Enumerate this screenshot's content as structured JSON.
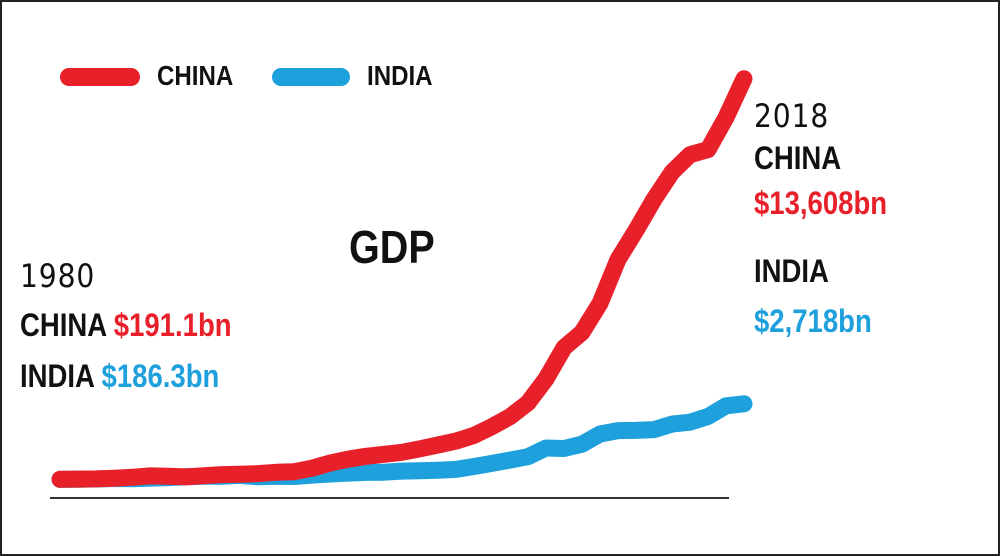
{
  "colors": {
    "china": "#e8202a",
    "india": "#1ea0dd",
    "text": "#111111",
    "baseline": "#333333"
  },
  "legend": {
    "china_label": "CHINA",
    "india_label": "INDIA"
  },
  "annotations": {
    "start": {
      "year": "1980",
      "china_label": "CHINA",
      "china_value": "$191.1bn",
      "india_label": "INDIA",
      "india_value": "$186.3bn"
    },
    "end": {
      "year": "2018",
      "china_label": "CHINA",
      "china_value": "$13,608bn",
      "india_label": "INDIA",
      "india_value": "$2,718bn"
    }
  },
  "chart_data": {
    "type": "line",
    "title": "GDP",
    "xlabel": "",
    "ylabel": "",
    "xlim": [
      1980,
      2018
    ],
    "ylim": [
      0,
      14000
    ],
    "grid": false,
    "legend_position": "top-left",
    "x": [
      1980,
      1981,
      1982,
      1983,
      1984,
      1985,
      1986,
      1987,
      1988,
      1989,
      1990,
      1991,
      1992,
      1993,
      1994,
      1995,
      1996,
      1997,
      1998,
      1999,
      2000,
      2001,
      2002,
      2003,
      2004,
      2005,
      2006,
      2007,
      2008,
      2009,
      2010,
      2011,
      2012,
      2013,
      2014,
      2015,
      2016,
      2017,
      2018
    ],
    "series": [
      {
        "name": "CHINA",
        "values": [
          191.1,
          196,
          205,
          228,
          257,
          305,
          296,
          270,
          312,
          348,
          361,
          383,
          427,
          445,
          564,
          735,
          864,
          962,
          1029,
          1094,
          1211,
          1340,
          1471,
          1660,
          1956,
          2286,
          2752,
          3552,
          4598,
          5110,
          6087,
          7551,
          8532,
          9570,
          10476,
          11062,
          11233,
          12310,
          13608
        ]
      },
      {
        "name": "INDIA",
        "values": [
          186.3,
          193,
          200,
          218,
          212,
          232,
          248,
          279,
          296,
          296,
          321,
          274,
          293,
          284,
          333,
          367,
          400,
          423,
          429,
          467,
          477,
          494,
          524,
          618,
          722,
          834,
          949,
          1238,
          1224,
          1365,
          1709,
          1823,
          1828,
          1857,
          2039,
          2104,
          2295,
          2653,
          2718
        ]
      }
    ]
  }
}
